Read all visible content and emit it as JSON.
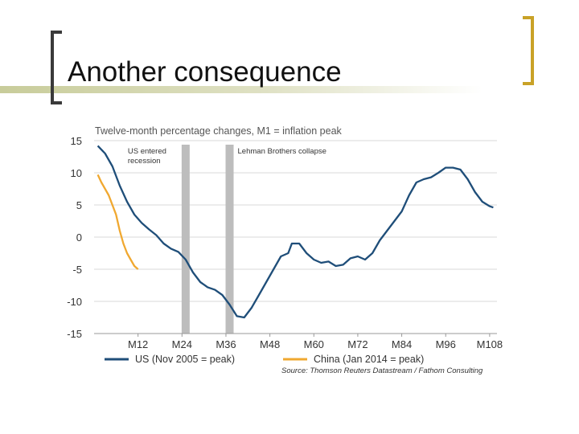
{
  "slide": {
    "title": "Another consequence"
  },
  "colors": {
    "us": "#1f4e79",
    "china": "#f0a830",
    "band": "#bdbdbd",
    "title_bar": "#c8cc9a",
    "bracket_gold": "#c9a227"
  },
  "chart_data": {
    "type": "line",
    "title": "Twelve-month percentage changes, M1 = inflation peak",
    "xlabel": "",
    "ylabel": "",
    "x_range": [
      0,
      110
    ],
    "ylim": [
      -15,
      15
    ],
    "y_ticks": [
      15,
      10,
      5,
      0,
      -5,
      -10,
      -15
    ],
    "y_tick_labels": [
      "15",
      "10",
      "5",
      "0",
      "-5",
      "-10",
      "-15"
    ],
    "x_ticks": [
      {
        "x": 12,
        "label": "M12"
      },
      {
        "x": 24,
        "label": "M24"
      },
      {
        "x": 36,
        "label": "M36"
      },
      {
        "x": 48,
        "label": "M48"
      },
      {
        "x": 60,
        "label": "M60"
      },
      {
        "x": 72,
        "label": "M72"
      },
      {
        "x": 84,
        "label": "M84"
      },
      {
        "x": 96,
        "label": "M96"
      },
      {
        "x": 108,
        "label": "M108"
      }
    ],
    "bands": [
      {
        "name": "band-us-recession",
        "x": 25,
        "label_lines": [
          "US entered",
          "recession"
        ]
      },
      {
        "name": "band-lehman",
        "x": 37,
        "label_lines": [
          "Lehman Brothers collapse"
        ]
      }
    ],
    "series": [
      {
        "name": "US (Nov 2005 = peak)",
        "color": "#1f4e79",
        "points": [
          [
            1,
            14.2
          ],
          [
            3,
            13
          ],
          [
            5,
            11
          ],
          [
            7,
            8
          ],
          [
            9,
            5.5
          ],
          [
            11,
            3.5
          ],
          [
            13,
            2.2
          ],
          [
            15,
            1.2
          ],
          [
            17,
            0.3
          ],
          [
            19,
            -1
          ],
          [
            21,
            -1.8
          ],
          [
            23,
            -2.3
          ],
          [
            25,
            -3.5
          ],
          [
            27,
            -5.5
          ],
          [
            29,
            -7
          ],
          [
            31,
            -7.8
          ],
          [
            33,
            -8.2
          ],
          [
            35,
            -9
          ],
          [
            37,
            -10.5
          ],
          [
            39,
            -12.3
          ],
          [
            41,
            -12.5
          ],
          [
            43,
            -11
          ],
          [
            45,
            -9
          ],
          [
            47,
            -7
          ],
          [
            49,
            -5
          ],
          [
            51,
            -3
          ],
          [
            53,
            -2.5
          ],
          [
            54,
            -1
          ],
          [
            56,
            -1
          ],
          [
            58,
            -2.5
          ],
          [
            60,
            -3.5
          ],
          [
            62,
            -4
          ],
          [
            64,
            -3.8
          ],
          [
            66,
            -4.5
          ],
          [
            68,
            -4.3
          ],
          [
            70,
            -3.3
          ],
          [
            72,
            -3
          ],
          [
            74,
            -3.5
          ],
          [
            76,
            -2.5
          ],
          [
            78,
            -0.5
          ],
          [
            80,
            1
          ],
          [
            82,
            2.5
          ],
          [
            84,
            4
          ],
          [
            86,
            6.5
          ],
          [
            88,
            8.5
          ],
          [
            90,
            9
          ],
          [
            92,
            9.3
          ],
          [
            94,
            10
          ],
          [
            96,
            10.8
          ],
          [
            98,
            10.8
          ],
          [
            100,
            10.5
          ],
          [
            102,
            9
          ],
          [
            104,
            7
          ],
          [
            106,
            5.5
          ],
          [
            108,
            4.8
          ],
          [
            109,
            4.6
          ]
        ]
      },
      {
        "name": "China (Jan 2014 = peak)",
        "color": "#f0a830",
        "points": [
          [
            1,
            9.7
          ],
          [
            2,
            8.5
          ],
          [
            4,
            6.5
          ],
          [
            6,
            3.5
          ],
          [
            7,
            1
          ],
          [
            8,
            -1
          ],
          [
            9,
            -2.5
          ],
          [
            10,
            -3.5
          ],
          [
            11,
            -4.5
          ],
          [
            12,
            -5
          ]
        ]
      }
    ],
    "legend": {
      "placement": "bottom",
      "entries": [
        "US (Nov 2005 = peak)",
        "China (Jan 2014 = peak)"
      ]
    },
    "source": "Source: Thomson Reuters Datastream / Fathom Consulting",
    "grid": true
  }
}
